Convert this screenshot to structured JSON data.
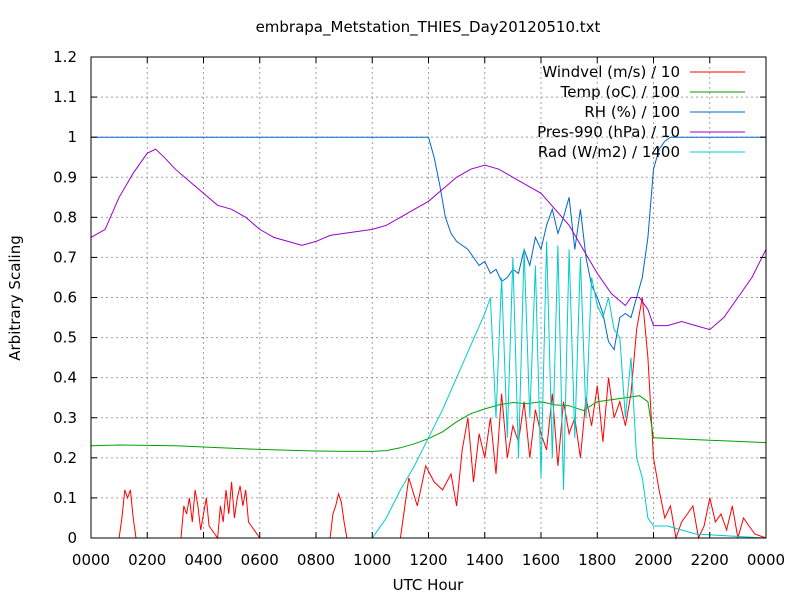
{
  "chart_data": {
    "type": "line",
    "title": "embrapa_Metstation_THIES_Day20120510.txt",
    "xlabel": "UTC Hour",
    "ylabel": "Arbitrary Scaling",
    "xlim": [
      0,
      24
    ],
    "ylim": [
      0,
      1.2
    ],
    "x_ticks": [
      0,
      2,
      4,
      6,
      8,
      10,
      12,
      14,
      16,
      18,
      20,
      22,
      24
    ],
    "x_tick_labels": [
      "0000",
      "0200",
      "0400",
      "0600",
      "0800",
      "1000",
      "1200",
      "1400",
      "1600",
      "1800",
      "2000",
      "2200",
      "0000"
    ],
    "y_ticks": [
      0,
      0.1,
      0.2,
      0.3,
      0.4,
      0.5,
      0.6,
      0.7,
      0.8,
      0.9,
      1,
      1.1,
      1.2
    ],
    "y_tick_labels": [
      "0",
      "0.1",
      "0.2",
      "0.3",
      "0.4",
      "0.5",
      "0.6",
      "0.7",
      "0.8",
      "0.9",
      "1",
      "1.1",
      "1.2"
    ],
    "grid": true,
    "legend_position": "top-right",
    "series": [
      {
        "name": "Windvel (m/s) / 10",
        "color": "#ff0000",
        "x": [
          0,
          1.0,
          1.1,
          1.2,
          1.3,
          1.4,
          1.5,
          1.6,
          2.0,
          3.2,
          3.3,
          3.4,
          3.5,
          3.6,
          3.7,
          3.8,
          3.9,
          4.0,
          4.1,
          4.2,
          4.5,
          4.6,
          4.7,
          4.8,
          4.9,
          5.0,
          5.1,
          5.2,
          5.3,
          5.4,
          5.5,
          5.6,
          6.0,
          8.5,
          8.6,
          8.7,
          8.8,
          8.9,
          9.0,
          9.1,
          10.5,
          11.0,
          11.3,
          11.6,
          11.9,
          12.2,
          12.5,
          12.8,
          13.0,
          13.2,
          13.4,
          13.6,
          13.8,
          14.0,
          14.2,
          14.4,
          14.6,
          14.8,
          15.0,
          15.2,
          15.4,
          15.6,
          15.8,
          16.0,
          16.2,
          16.4,
          16.6,
          16.8,
          17.0,
          17.2,
          17.4,
          17.6,
          17.8,
          18.0,
          18.2,
          18.4,
          18.6,
          18.8,
          19.0,
          19.2,
          19.4,
          19.6,
          19.8,
          20.0,
          20.2,
          20.4,
          20.6,
          20.8,
          21.0,
          21.2,
          21.4,
          21.6,
          21.8,
          22.0,
          22.2,
          22.4,
          22.6,
          22.8,
          23.0,
          23.2,
          23.4,
          23.6,
          24
        ],
        "y": [
          0,
          0,
          0.05,
          0.12,
          0.1,
          0.12,
          0.05,
          0,
          0,
          0,
          0.08,
          0.06,
          0.1,
          0.04,
          0.12,
          0.08,
          0.02,
          0.06,
          0.1,
          0.03,
          0,
          0.08,
          0.04,
          0.12,
          0.06,
          0.14,
          0.05,
          0.1,
          0.13,
          0.08,
          0.12,
          0.04,
          0,
          0,
          0.06,
          0.08,
          0.11,
          0.09,
          0.04,
          0,
          0,
          0,
          0.15,
          0.08,
          0.18,
          0.14,
          0.12,
          0.16,
          0.08,
          0.22,
          0.3,
          0.14,
          0.26,
          0.2,
          0.3,
          0.16,
          0.36,
          0.2,
          0.28,
          0.24,
          0.34,
          0.2,
          0.32,
          0.26,
          0.22,
          0.36,
          0.18,
          0.34,
          0.26,
          0.3,
          0.2,
          0.35,
          0.28,
          0.38,
          0.24,
          0.4,
          0.3,
          0.34,
          0.28,
          0.36,
          0.52,
          0.6,
          0.45,
          0.2,
          0.12,
          0.05,
          0.08,
          0,
          0.04,
          0.06,
          0.08,
          0,
          0.03,
          0.1,
          0.04,
          0.06,
          0.02,
          0.08,
          0,
          0.05,
          0.03,
          0.01,
          0
        ]
      },
      {
        "name": "Temp (oC) / 100",
        "color": "#00a000",
        "x": [
          0,
          1,
          2,
          3,
          4,
          5,
          6,
          7,
          8,
          9,
          10,
          10.5,
          11,
          11.5,
          12,
          12.5,
          13,
          13.5,
          14,
          14.5,
          15,
          15.5,
          16,
          16.5,
          17,
          17.5,
          18,
          18.5,
          19,
          19.5,
          19.8,
          20,
          21,
          22,
          23,
          24
        ],
        "y": [
          0.23,
          0.232,
          0.231,
          0.23,
          0.227,
          0.224,
          0.221,
          0.219,
          0.217,
          0.216,
          0.216,
          0.218,
          0.225,
          0.235,
          0.248,
          0.265,
          0.29,
          0.31,
          0.322,
          0.332,
          0.338,
          0.335,
          0.34,
          0.332,
          0.33,
          0.318,
          0.34,
          0.345,
          0.35,
          0.355,
          0.34,
          0.25,
          0.247,
          0.244,
          0.241,
          0.238
        ]
      },
      {
        "name": "RH (%) / 100",
        "color": "#0066cc",
        "x": [
          0,
          12.0,
          12.2,
          12.4,
          12.6,
          12.8,
          13.0,
          13.2,
          13.4,
          13.6,
          13.8,
          14.0,
          14.2,
          14.4,
          14.6,
          14.8,
          15.0,
          15.2,
          15.4,
          15.6,
          15.8,
          16.0,
          16.2,
          16.4,
          16.6,
          16.8,
          17.0,
          17.2,
          17.4,
          17.6,
          17.8,
          18.0,
          18.2,
          18.4,
          18.6,
          18.8,
          19.0,
          19.2,
          19.4,
          19.6,
          19.8,
          20.0,
          20.2,
          20.4,
          20.6,
          24
        ],
        "y": [
          1.0,
          1.0,
          0.95,
          0.88,
          0.8,
          0.76,
          0.74,
          0.73,
          0.72,
          0.7,
          0.68,
          0.69,
          0.66,
          0.67,
          0.64,
          0.65,
          0.67,
          0.66,
          0.72,
          0.68,
          0.75,
          0.72,
          0.78,
          0.82,
          0.76,
          0.8,
          0.85,
          0.72,
          0.82,
          0.7,
          0.63,
          0.6,
          0.56,
          0.49,
          0.47,
          0.55,
          0.56,
          0.55,
          0.6,
          0.65,
          0.75,
          0.92,
          0.97,
          0.99,
          1.0,
          1.0
        ]
      },
      {
        "name": "Pres-990 (hPa) / 10",
        "color": "#9900cc",
        "x": [
          0,
          0.5,
          1,
          1.5,
          2,
          2.3,
          2.6,
          3,
          3.5,
          4,
          4.5,
          5,
          5.5,
          6,
          6.5,
          7,
          7.5,
          8,
          8.5,
          9,
          9.5,
          10,
          10.5,
          11,
          11.5,
          12,
          12.5,
          13,
          13.5,
          14,
          14.5,
          15,
          15.5,
          16,
          16.5,
          17,
          17.5,
          18,
          18.5,
          19,
          19.2,
          19.5,
          19.8,
          20,
          20.5,
          21,
          21.5,
          22,
          22.5,
          23,
          23.5,
          24
        ],
        "y": [
          0.75,
          0.77,
          0.85,
          0.91,
          0.96,
          0.97,
          0.95,
          0.92,
          0.89,
          0.86,
          0.83,
          0.82,
          0.8,
          0.77,
          0.75,
          0.74,
          0.73,
          0.74,
          0.755,
          0.76,
          0.765,
          0.77,
          0.78,
          0.8,
          0.82,
          0.84,
          0.87,
          0.9,
          0.92,
          0.93,
          0.92,
          0.9,
          0.88,
          0.86,
          0.82,
          0.78,
          0.72,
          0.66,
          0.61,
          0.58,
          0.6,
          0.6,
          0.57,
          0.53,
          0.53,
          0.54,
          0.53,
          0.52,
          0.55,
          0.6,
          0.65,
          0.72
        ]
      },
      {
        "name": "Rad (W/m2) / 1400",
        "color": "#00cccc",
        "x": [
          0,
          10.0,
          10.5,
          11.0,
          11.5,
          12.0,
          12.5,
          13.0,
          13.5,
          14.0,
          14.2,
          14.4,
          14.6,
          14.8,
          15.0,
          15.2,
          15.4,
          15.6,
          15.8,
          16.0,
          16.2,
          16.4,
          16.6,
          16.8,
          17.0,
          17.2,
          17.4,
          17.6,
          17.8,
          18.0,
          18.2,
          18.4,
          18.6,
          18.8,
          19.0,
          19.2,
          19.4,
          19.6,
          19.8,
          20.0,
          20.5,
          21.0,
          21.5,
          24
        ],
        "y": [
          0,
          0,
          0.05,
          0.12,
          0.18,
          0.25,
          0.32,
          0.4,
          0.48,
          0.56,
          0.6,
          0.3,
          0.65,
          0.25,
          0.7,
          0.2,
          0.72,
          0.3,
          0.68,
          0.15,
          0.74,
          0.2,
          0.73,
          0.12,
          0.72,
          0.25,
          0.7,
          0.3,
          0.65,
          0.58,
          0.55,
          0.6,
          0.52,
          0.5,
          0.3,
          0.45,
          0.2,
          0.15,
          0.05,
          0.03,
          0.03,
          0.02,
          0.01,
          0
        ]
      }
    ]
  }
}
